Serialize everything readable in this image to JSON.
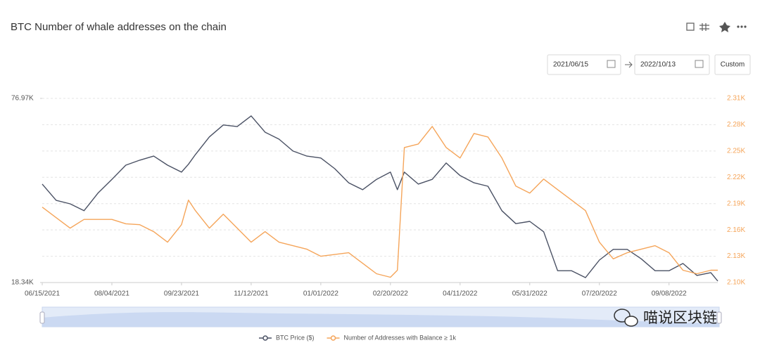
{
  "header": {
    "title": "BTC Number of whale addresses on the chain"
  },
  "controls": {
    "start_date": "2021/06/15",
    "end_date": "2022/10/13",
    "range_button": "Custom"
  },
  "watermark": "喵说区块链",
  "chart_data": {
    "type": "line",
    "x": [
      "06/15/2021",
      "06/25/2021",
      "07/05/2021",
      "07/15/2021",
      "07/25/2021",
      "08/04/2021",
      "08/14/2021",
      "08/24/2021",
      "09/03/2021",
      "09/13/2021",
      "09/23/2021",
      "09/28/2021",
      "10/03/2021",
      "10/13/2021",
      "10/23/2021",
      "11/02/2021",
      "11/12/2021",
      "11/22/2021",
      "12/02/2021",
      "12/12/2021",
      "12/22/2021",
      "01/01/2022",
      "01/11/2022",
      "01/21/2022",
      "01/31/2022",
      "02/10/2022",
      "02/20/2022",
      "02/25/2022",
      "03/02/2022",
      "03/12/2022",
      "03/22/2022",
      "04/01/2022",
      "04/11/2022",
      "04/21/2022",
      "05/01/2022",
      "05/11/2022",
      "05/21/2022",
      "05/31/2022",
      "06/10/2022",
      "06/20/2022",
      "06/30/2022",
      "07/10/2022",
      "07/20/2022",
      "07/30/2022",
      "08/09/2022",
      "08/19/2022",
      "08/29/2022",
      "09/08/2022",
      "09/18/2022",
      "09/28/2022",
      "10/08/2022",
      "10/13/2022"
    ],
    "xticks": [
      "06/15/2021",
      "08/04/2021",
      "09/23/2021",
      "11/12/2021",
      "01/01/2022",
      "02/20/2022",
      "04/11/2022",
      "05/31/2022",
      "07/20/2022",
      "09/08/2022"
    ],
    "ylim": [
      18340,
      76970
    ],
    "yticks": [
      {
        "value": 18340,
        "label": "18.34K"
      },
      {
        "value": 76970,
        "label": "76.97K"
      }
    ],
    "y2lim": [
      2100,
      2310
    ],
    "y2ticks": [
      {
        "value": 2100,
        "label": "2.10K"
      },
      {
        "value": 2130,
        "label": "2.13K"
      },
      {
        "value": 2160,
        "label": "2.16K"
      },
      {
        "value": 2190,
        "label": "2.19K"
      },
      {
        "value": 2220,
        "label": "2.22K"
      },
      {
        "value": 2250,
        "label": "2.25K"
      },
      {
        "value": 2280,
        "label": "2.28K"
      },
      {
        "value": 2310,
        "label": "2.31K"
      }
    ],
    "grid": true,
    "series": [
      {
        "name": "BTC Price ($)",
        "color": "#4a5164",
        "values": [
          49700,
          44500,
          43400,
          41200,
          46800,
          51200,
          55700,
          57300,
          58600,
          55700,
          53500,
          56000,
          59100,
          64700,
          68500,
          68000,
          71400,
          66200,
          64000,
          60200,
          58600,
          58000,
          54600,
          50100,
          47900,
          51200,
          53500,
          47900,
          53500,
          49700,
          51200,
          56400,
          52400,
          50100,
          49000,
          41200,
          37100,
          37800,
          34500,
          22100,
          22100,
          19900,
          25500,
          28900,
          28900,
          25900,
          22100,
          22100,
          24400,
          20600,
          21500,
          18800
        ]
      },
      {
        "name": "Number of Addresses with Balance ≥ 1k",
        "color": "#f5a55a",
        "axis": "y2",
        "values": [
          2186,
          2174,
          2162,
          2172,
          2172,
          2172,
          2167,
          2166,
          2158,
          2146,
          2166,
          2194,
          2182,
          2162,
          2178,
          2162,
          2146,
          2158,
          2146,
          2142,
          2138,
          2130,
          2132,
          2134,
          2122,
          2110,
          2106,
          2114,
          2254,
          2258,
          2278,
          2254,
          2242,
          2270,
          2266,
          2242,
          2210,
          2202,
          2218,
          2206,
          2194,
          2182,
          2146,
          2127,
          2134,
          2138,
          2142,
          2134,
          2114,
          2110,
          2114,
          2114
        ]
      }
    ]
  }
}
